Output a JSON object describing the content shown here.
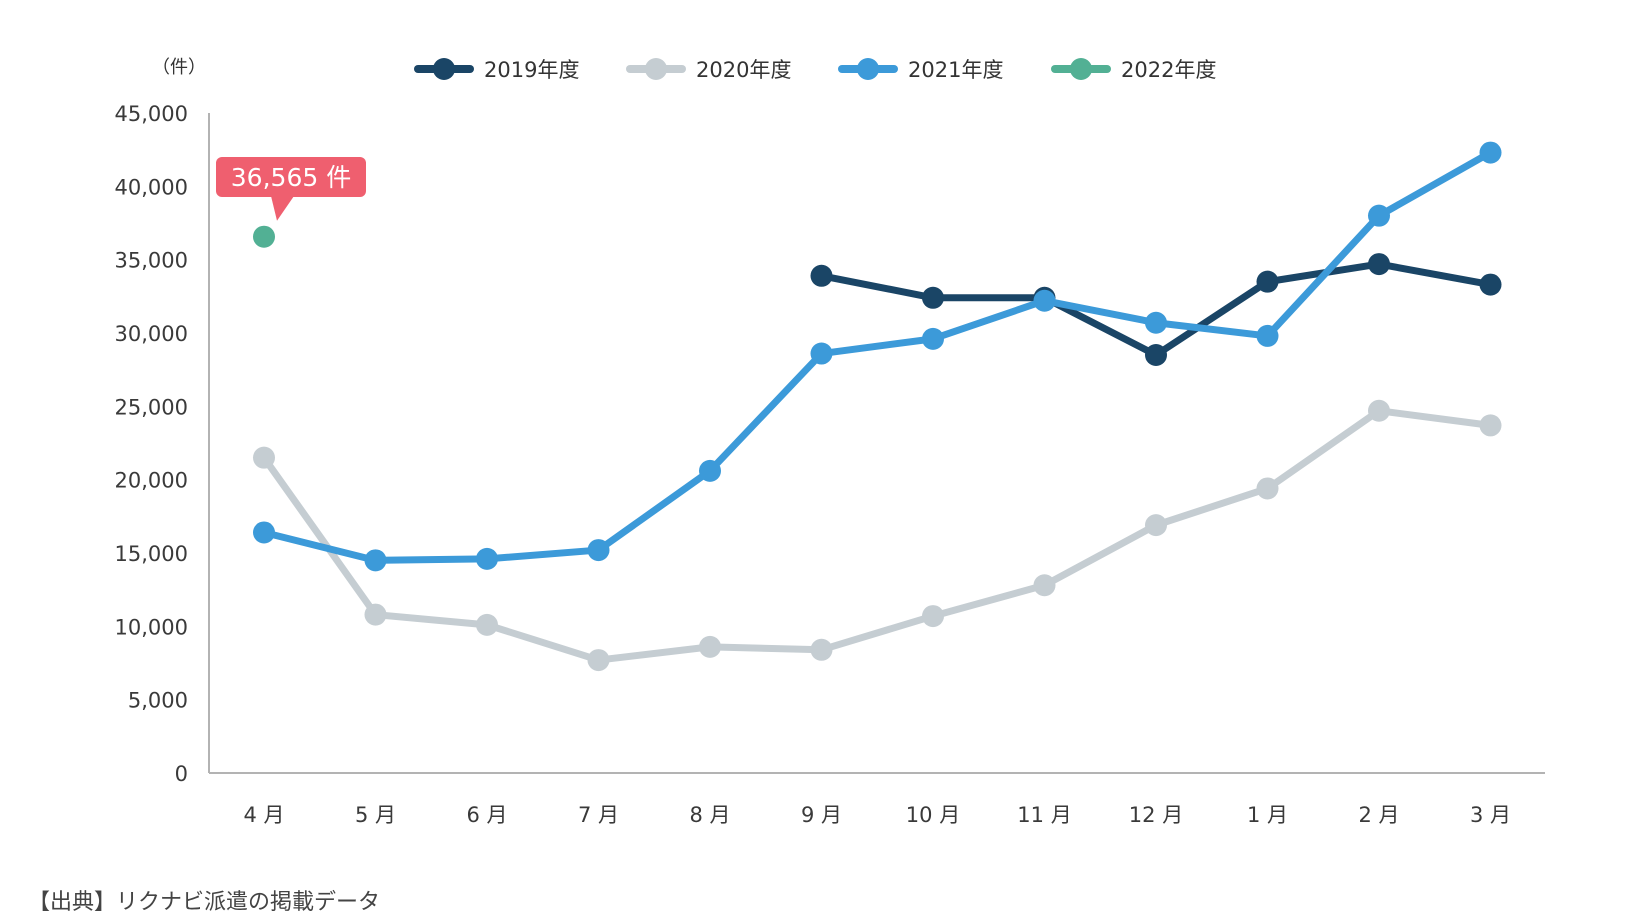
{
  "chart_data": {
    "type": "line",
    "unit_label": "（件）",
    "categories": [
      "4 月",
      "5 月",
      "6 月",
      "7 月",
      "8 月",
      "9 月",
      "10 月",
      "11 月",
      "12 月",
      "1 月",
      "2 月",
      "3 月"
    ],
    "ylim": [
      0,
      45000
    ],
    "yticks": [
      0,
      5000,
      10000,
      15000,
      20000,
      25000,
      30000,
      35000,
      40000,
      45000
    ],
    "ytick_labels": [
      "0",
      "5,000",
      "10,000",
      "15,000",
      "20,000",
      "25,000",
      "30,000",
      "35,000",
      "40,000",
      "45,000"
    ],
    "grid": false,
    "legend_position": "top",
    "series": [
      {
        "name": "2019年度",
        "color": "#1a4566",
        "values": [
          null,
          null,
          null,
          null,
          null,
          33900,
          32400,
          32400,
          28500,
          33500,
          34700,
          33300
        ]
      },
      {
        "name": "2020年度",
        "color": "#c5cdd2",
        "values": [
          21500,
          10800,
          10100,
          7700,
          8600,
          8400,
          10700,
          12800,
          16900,
          19400,
          24700,
          23700
        ]
      },
      {
        "name": "2021年度",
        "color": "#3c9ad9",
        "values": [
          16400,
          14500,
          14600,
          15200,
          20600,
          28600,
          29600,
          32200,
          30700,
          29800,
          38000,
          42300
        ]
      },
      {
        "name": "2022年度",
        "color": "#52b094",
        "values": [
          36565,
          null,
          null,
          null,
          null,
          null,
          null,
          null,
          null,
          null,
          null,
          null
        ]
      }
    ],
    "annotation": {
      "text": "36,565 件",
      "color": "#ef5f6f",
      "series_index": 3,
      "point_index": 0
    }
  },
  "source": "【出典】リクナビ派遣の掲載データ"
}
